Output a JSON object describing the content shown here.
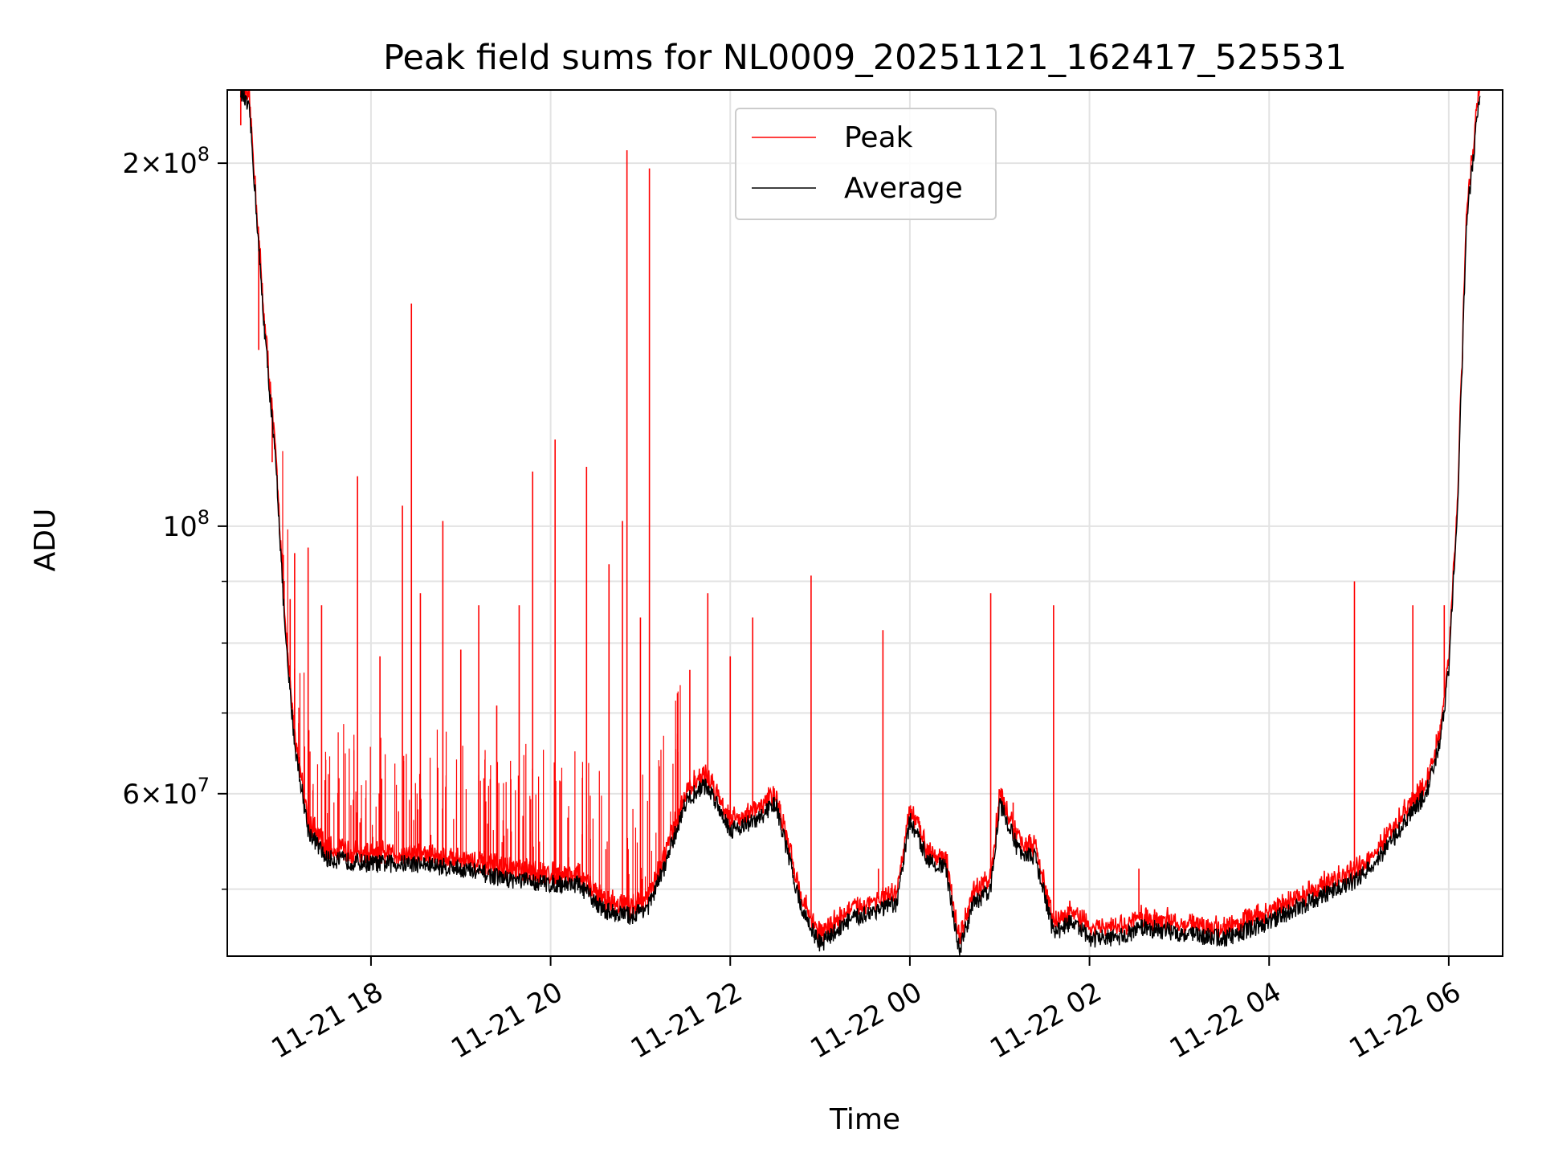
{
  "chart_data": {
    "type": "line",
    "title": "Peak field sums for NL0009_20251121_162417_525531",
    "xlabel": "Time",
    "ylabel": "ADU",
    "yscale": "log",
    "grid": true,
    "legend_position": "top-center",
    "xlim": [
      16.4,
      30.6
    ],
    "ylim": [
      44000000,
      230000000
    ],
    "x_ticks": [
      {
        "value": 18,
        "label": "11-21 18"
      },
      {
        "value": 20,
        "label": "11-21 20"
      },
      {
        "value": 22,
        "label": "11-21 22"
      },
      {
        "value": 24,
        "label": "11-22 00"
      },
      {
        "value": 26,
        "label": "11-22 02"
      },
      {
        "value": 28,
        "label": "11-22 04"
      },
      {
        "value": 30,
        "label": "11-22 06"
      }
    ],
    "y_ticks": [
      {
        "value": 60000000,
        "base": "6",
        "mult": "×",
        "exp_base": "10",
        "exp": "7"
      },
      {
        "value": 100000000,
        "base": "",
        "mult": "",
        "exp_base": "10",
        "exp": "8"
      },
      {
        "value": 200000000,
        "base": "2",
        "mult": "×",
        "exp_base": "10",
        "exp": "8"
      }
    ],
    "y_minor_ticks": [
      50000000,
      70000000,
      80000000,
      90000000
    ],
    "series": [
      {
        "name": "Peak",
        "color": "#ff0000"
      },
      {
        "name": "Average",
        "color": "#000000"
      }
    ],
    "baseline_x_hours": [
      16.55,
      16.65,
      16.8,
      16.95,
      17.05,
      17.15,
      17.3,
      17.5,
      18.0,
      18.5,
      19.0,
      19.5,
      20.0,
      20.3,
      20.6,
      20.9,
      21.1,
      21.3,
      21.5,
      21.7,
      21.8,
      22.0,
      22.3,
      22.5,
      22.8,
      23.0,
      23.3,
      23.6,
      23.85,
      24.0,
      24.2,
      24.4,
      24.55,
      24.7,
      24.9,
      25.0,
      25.2,
      25.4,
      25.6,
      25.8,
      26.0,
      26.3,
      26.6,
      27.0,
      27.5,
      28.0,
      28.5,
      29.0,
      29.3,
      29.6,
      29.75,
      29.9,
      30.0,
      30.1,
      30.2,
      30.35
    ],
    "baseline_adu": [
      230000000,
      220000000,
      150000000,
      110000000,
      80000000,
      66000000,
      56000000,
      53000000,
      52500000,
      52500000,
      52000000,
      51000000,
      50500000,
      50500000,
      48000000,
      47500000,
      48500000,
      53000000,
      59000000,
      61000000,
      60000000,
      56000000,
      57000000,
      59000000,
      48000000,
      45000000,
      47000000,
      48000000,
      48500000,
      57000000,
      53000000,
      52000000,
      44500000,
      48500000,
      50000000,
      59000000,
      54000000,
      53000000,
      46000000,
      47000000,
      45500000,
      45500000,
      46500000,
      46000000,
      45500000,
      47000000,
      49000000,
      51000000,
      54000000,
      58000000,
      60000000,
      66000000,
      76000000,
      105000000,
      180000000,
      230000000
    ],
    "peak_spikes": [
      {
        "x": 16.55,
        "adu": 215000000
      },
      {
        "x": 16.75,
        "adu": 140000000
      },
      {
        "x": 16.9,
        "adu": 113000000
      },
      {
        "x": 17.1,
        "adu": 87000000
      },
      {
        "x": 17.15,
        "adu": 95000000
      },
      {
        "x": 17.3,
        "adu": 96000000
      },
      {
        "x": 17.45,
        "adu": 86000000
      },
      {
        "x": 17.85,
        "adu": 110000000
      },
      {
        "x": 18.1,
        "adu": 78000000
      },
      {
        "x": 18.35,
        "adu": 104000000
      },
      {
        "x": 18.45,
        "adu": 153000000
      },
      {
        "x": 18.55,
        "adu": 88000000
      },
      {
        "x": 18.8,
        "adu": 101000000
      },
      {
        "x": 19.0,
        "adu": 79000000
      },
      {
        "x": 19.2,
        "adu": 86000000
      },
      {
        "x": 19.4,
        "adu": 71000000
      },
      {
        "x": 19.65,
        "adu": 86000000
      },
      {
        "x": 19.8,
        "adu": 111000000
      },
      {
        "x": 20.05,
        "adu": 118000000
      },
      {
        "x": 20.4,
        "adu": 112000000
      },
      {
        "x": 20.65,
        "adu": 93000000
      },
      {
        "x": 20.8,
        "adu": 101000000
      },
      {
        "x": 20.85,
        "adu": 205000000
      },
      {
        "x": 21.0,
        "adu": 84000000
      },
      {
        "x": 21.1,
        "adu": 198000000
      },
      {
        "x": 21.55,
        "adu": 76000000
      },
      {
        "x": 21.75,
        "adu": 88000000
      },
      {
        "x": 22.0,
        "adu": 78000000
      },
      {
        "x": 22.25,
        "adu": 84000000
      },
      {
        "x": 22.9,
        "adu": 91000000
      },
      {
        "x": 23.65,
        "adu": 52000000
      },
      {
        "x": 23.7,
        "adu": 82000000
      },
      {
        "x": 24.9,
        "adu": 88000000
      },
      {
        "x": 25.15,
        "adu": 59000000
      },
      {
        "x": 25.6,
        "adu": 86000000
      },
      {
        "x": 26.55,
        "adu": 52000000
      },
      {
        "x": 28.95,
        "adu": 90000000
      },
      {
        "x": 29.6,
        "adu": 86000000
      },
      {
        "x": 29.95,
        "adu": 86000000
      }
    ]
  }
}
